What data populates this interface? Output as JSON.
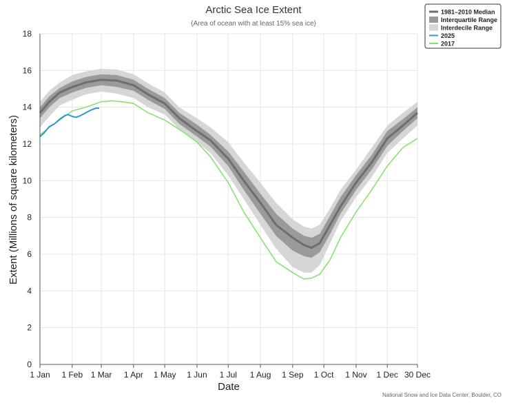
{
  "chart_data": {
    "type": "line",
    "title": "Arctic Sea Ice Extent",
    "subtitle": "(Area of ocean with at least 15% sea ice)",
    "xlabel": "Date",
    "ylabel": "Extent (Millions of square kilometers)",
    "ylim": [
      0,
      18
    ],
    "yticks": [
      0,
      2,
      4,
      6,
      8,
      10,
      12,
      14,
      16,
      18
    ],
    "xlim_doy": [
      1,
      364
    ],
    "xticks": [
      {
        "label": "1 Jan",
        "doy": 1
      },
      {
        "label": "1 Feb",
        "doy": 32
      },
      {
        "label": "1 Mar",
        "doy": 60
      },
      {
        "label": "1 Apr",
        "doy": 91
      },
      {
        "label": "1 May",
        "doy": 121
      },
      {
        "label": "1 Jun",
        "doy": 152
      },
      {
        "label": "1 Jul",
        "doy": 182
      },
      {
        "label": "1 Aug",
        "doy": 213
      },
      {
        "label": "1 Sep",
        "doy": 244
      },
      {
        "label": "1 Oct",
        "doy": 274
      },
      {
        "label": "1 Nov",
        "doy": 305
      },
      {
        "label": "1 Dec",
        "doy": 335
      },
      {
        "label": "30 Dec",
        "doy": 364
      }
    ],
    "grid": true,
    "legend_position": "top-right",
    "legend": [
      {
        "label": "1981–2010 Median",
        "kind": "line",
        "color": "#6e6e6e"
      },
      {
        "label": "Interquartile Range",
        "kind": "box",
        "color": "#9a9a9a"
      },
      {
        "label": "Interdecile Range",
        "kind": "box",
        "color": "#d6d6d6"
      },
      {
        "label": "2025",
        "kind": "line",
        "color": "#2f97d8"
      },
      {
        "label": "2017",
        "kind": "line",
        "color": "#7fe36a"
      }
    ],
    "colors": {
      "median": "#6e6e6e",
      "interquartile": "#9a9a9a",
      "interdecile": "#d6d6d6",
      "y2025": "#2f97d8",
      "y2017": "#7fe36a"
    },
    "series": [
      {
        "name": "1981–2010 Median",
        "x": [
          1,
          10,
          20,
          32,
          45,
          60,
          75,
          91,
          105,
          121,
          135,
          152,
          165,
          182,
          197,
          213,
          228,
          244,
          255,
          262,
          270,
          280,
          290,
          305,
          320,
          335,
          350,
          364
        ],
        "y": [
          13.7,
          14.3,
          14.8,
          15.1,
          15.35,
          15.5,
          15.45,
          15.2,
          14.7,
          14.2,
          13.4,
          12.7,
          12.2,
          11.2,
          10.0,
          8.8,
          7.6,
          6.9,
          6.5,
          6.35,
          6.6,
          7.6,
          8.6,
          9.9,
          11.0,
          12.3,
          13.0,
          13.7
        ]
      },
      {
        "name": "Interquartile Range",
        "x": [
          1,
          10,
          20,
          32,
          45,
          60,
          75,
          91,
          105,
          121,
          135,
          152,
          165,
          182,
          197,
          213,
          228,
          244,
          255,
          262,
          270,
          280,
          290,
          305,
          320,
          335,
          350,
          364
        ],
        "low": [
          13.4,
          14.0,
          14.5,
          14.8,
          15.05,
          15.2,
          15.1,
          14.9,
          14.4,
          13.9,
          13.1,
          12.4,
          11.85,
          10.8,
          9.5,
          8.2,
          7.0,
          6.2,
          5.9,
          5.8,
          6.1,
          7.1,
          8.2,
          9.5,
          10.6,
          11.9,
          12.7,
          13.4
        ],
        "high": [
          14.0,
          14.6,
          15.05,
          15.4,
          15.65,
          15.8,
          15.75,
          15.5,
          15.0,
          14.5,
          13.7,
          13.05,
          12.5,
          11.6,
          10.5,
          9.3,
          8.2,
          7.4,
          7.0,
          6.9,
          7.1,
          8.1,
          9.1,
          10.3,
          11.4,
          12.7,
          13.35,
          14.0
        ]
      },
      {
        "name": "Interdecile Range",
        "x": [
          1,
          10,
          20,
          32,
          45,
          60,
          75,
          91,
          105,
          121,
          135,
          152,
          165,
          182,
          197,
          213,
          228,
          244,
          255,
          262,
          270,
          280,
          290,
          305,
          320,
          335,
          350,
          364
        ],
        "low": [
          12.9,
          13.5,
          14.1,
          14.4,
          14.7,
          14.85,
          14.75,
          14.5,
          14.0,
          13.6,
          12.8,
          12.1,
          11.5,
          10.3,
          9.0,
          7.6,
          6.3,
          5.3,
          5.0,
          5.0,
          5.4,
          6.6,
          7.8,
          9.1,
          10.2,
          11.5,
          12.3,
          13.0
        ],
        "high": [
          14.3,
          14.9,
          15.35,
          15.75,
          15.95,
          16.1,
          16.05,
          15.8,
          15.3,
          14.8,
          14.0,
          13.4,
          12.9,
          12.1,
          11.0,
          9.9,
          8.8,
          7.9,
          7.5,
          7.4,
          7.6,
          8.5,
          9.5,
          10.6,
          11.8,
          13.0,
          13.7,
          14.3
        ]
      },
      {
        "name": "2025",
        "x": [
          1,
          5,
          10,
          15,
          20,
          25,
          28,
          32,
          36,
          40,
          45,
          50,
          55,
          58
        ],
        "y": [
          12.4,
          12.6,
          12.95,
          13.1,
          13.35,
          13.55,
          13.6,
          13.5,
          13.45,
          13.55,
          13.7,
          13.85,
          13.95,
          13.95
        ]
      },
      {
        "name": "2017",
        "x": [
          1,
          10,
          20,
          32,
          45,
          60,
          70,
          80,
          91,
          105,
          121,
          135,
          152,
          165,
          182,
          197,
          213,
          228,
          244,
          250,
          255,
          262,
          270,
          280,
          290,
          305,
          320,
          335,
          350,
          364
        ],
        "y": [
          12.5,
          12.9,
          13.3,
          13.8,
          14.0,
          14.3,
          14.35,
          14.3,
          14.2,
          13.7,
          13.3,
          12.8,
          12.1,
          11.3,
          9.9,
          8.3,
          6.9,
          5.6,
          5.0,
          4.8,
          4.65,
          4.7,
          4.9,
          5.7,
          6.9,
          8.3,
          9.5,
          10.8,
          11.8,
          12.3
        ]
      }
    ]
  },
  "credit": "National Snow and Ice Data Center, Boulder, CO"
}
